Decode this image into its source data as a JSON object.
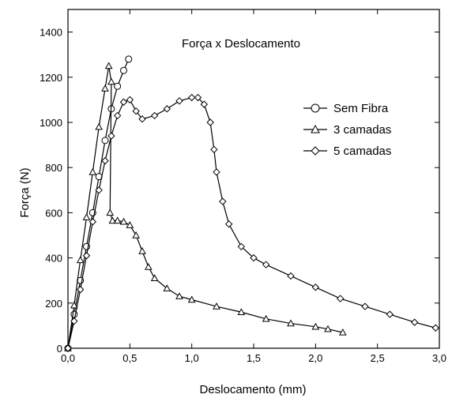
{
  "chart_data": {
    "type": "line",
    "title": "Força x Deslocamento",
    "xlabel": "Deslocamento (mm)",
    "ylabel": "Força (N)",
    "xlim": [
      0,
      3.0
    ],
    "ylim": [
      0,
      1500
    ],
    "x_ticks": [
      0,
      0.5,
      1.0,
      1.5,
      2.0,
      2.5,
      3.0
    ],
    "x_tick_labels": [
      "0,0",
      "0,5",
      "1,0",
      "1,5",
      "2,0",
      "2,5",
      "3,0"
    ],
    "y_ticks": [
      0,
      200,
      400,
      600,
      800,
      1000,
      1200,
      1400
    ],
    "y_tick_labels": [
      "0",
      "200",
      "400",
      "600",
      "800",
      "1000",
      "1200",
      "1400"
    ],
    "grid": false,
    "legend_position": "right",
    "series": [
      {
        "name": "Sem Fibra",
        "marker": "circle",
        "points": [
          [
            0.0,
            0
          ],
          [
            0.05,
            150
          ],
          [
            0.1,
            300
          ],
          [
            0.15,
            450
          ],
          [
            0.2,
            600
          ],
          [
            0.25,
            760
          ],
          [
            0.3,
            920
          ],
          [
            0.35,
            1060
          ],
          [
            0.4,
            1160
          ],
          [
            0.45,
            1230
          ],
          [
            0.49,
            1280
          ]
        ]
      },
      {
        "name": "3 camadas",
        "marker": "triangle",
        "points": [
          [
            0.0,
            0
          ],
          [
            0.05,
            190
          ],
          [
            0.1,
            390
          ],
          [
            0.15,
            580
          ],
          [
            0.2,
            780
          ],
          [
            0.25,
            980
          ],
          [
            0.3,
            1150
          ],
          [
            0.33,
            1250
          ],
          [
            0.35,
            1180
          ],
          [
            0.34,
            600
          ],
          [
            0.36,
            565
          ],
          [
            0.4,
            565
          ],
          [
            0.45,
            560
          ],
          [
            0.5,
            545
          ],
          [
            0.55,
            500
          ],
          [
            0.6,
            430
          ],
          [
            0.65,
            360
          ],
          [
            0.7,
            310
          ],
          [
            0.8,
            265
          ],
          [
            0.9,
            230
          ],
          [
            1.0,
            215
          ],
          [
            1.2,
            185
          ],
          [
            1.4,
            160
          ],
          [
            1.6,
            130
          ],
          [
            1.8,
            110
          ],
          [
            2.0,
            95
          ],
          [
            2.1,
            85
          ],
          [
            2.22,
            70
          ]
        ]
      },
      {
        "name": "5 camadas",
        "marker": "diamond",
        "points": [
          [
            0.0,
            0
          ],
          [
            0.05,
            120
          ],
          [
            0.1,
            260
          ],
          [
            0.15,
            410
          ],
          [
            0.2,
            560
          ],
          [
            0.25,
            700
          ],
          [
            0.3,
            830
          ],
          [
            0.35,
            940
          ],
          [
            0.4,
            1030
          ],
          [
            0.45,
            1090
          ],
          [
            0.5,
            1100
          ],
          [
            0.55,
            1050
          ],
          [
            0.6,
            1015
          ],
          [
            0.7,
            1030
          ],
          [
            0.8,
            1060
          ],
          [
            0.9,
            1095
          ],
          [
            1.0,
            1110
          ],
          [
            1.05,
            1110
          ],
          [
            1.1,
            1080
          ],
          [
            1.15,
            1000
          ],
          [
            1.18,
            880
          ],
          [
            1.2,
            780
          ],
          [
            1.25,
            650
          ],
          [
            1.3,
            550
          ],
          [
            1.4,
            450
          ],
          [
            1.5,
            400
          ],
          [
            1.6,
            370
          ],
          [
            1.8,
            320
          ],
          [
            2.0,
            270
          ],
          [
            2.2,
            220
          ],
          [
            2.4,
            185
          ],
          [
            2.6,
            150
          ],
          [
            2.8,
            115
          ],
          [
            2.97,
            90
          ]
        ]
      }
    ]
  }
}
